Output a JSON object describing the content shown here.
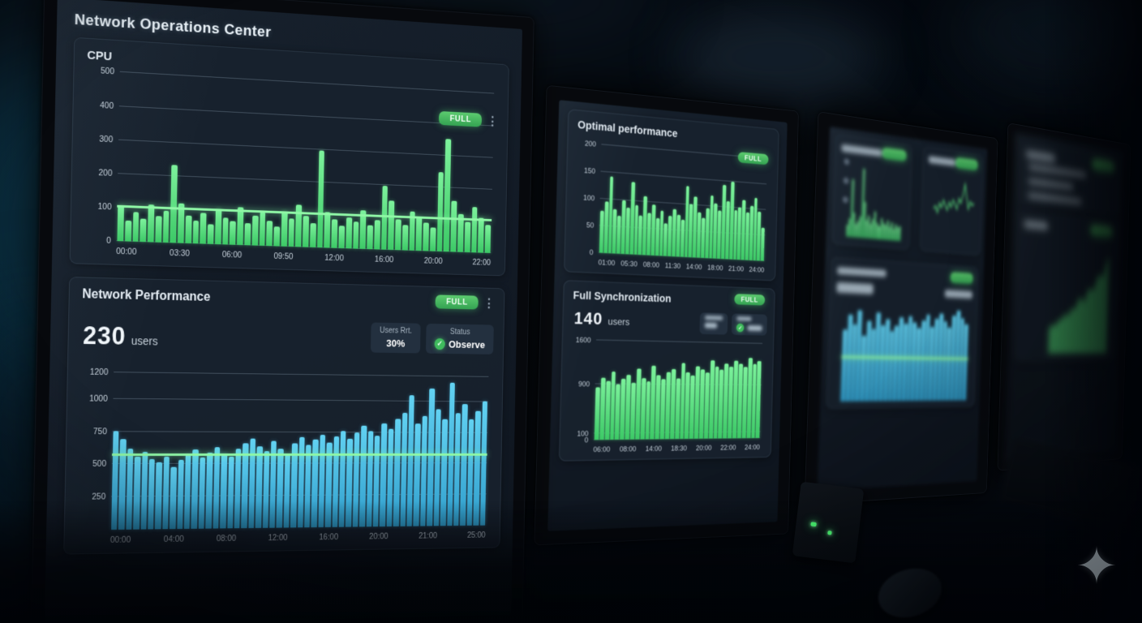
{
  "left_monitor": {
    "title": "Network Operations Center",
    "cpu_card": {
      "badge": "FULL",
      "menu_icon": "kebab-menu"
    },
    "network_card": {
      "badge": "FULL",
      "menu_icon": "kebab-menu",
      "big_stat": {
        "value": "230",
        "unit": "users"
      },
      "users_stat": {
        "label": "Users Rrt.",
        "value": "30%"
      },
      "status_stat": {
        "label": "Status",
        "value": "Observe",
        "icon": "check-circle"
      }
    }
  },
  "middle_monitor": {
    "top_card": {
      "badge": "FULL"
    },
    "bottom_card": {
      "badge": "FULL",
      "big_stat": {
        "value": "140",
        "unit": "users"
      }
    }
  },
  "scene": {
    "watermark_icon": "four-point-star-sparkle",
    "watermark_glyph": "✦"
  },
  "colors": {
    "bar_green": "#52de7b",
    "bar_blue": "#4cc0e8",
    "threshold_green": "#8ff7a6",
    "badge_green": "#43b85c",
    "screen_bg": "#131b25",
    "card_bg": "#18222e"
  },
  "chart_data": [
    {
      "id": "cpu",
      "type": "bar",
      "title": "CPU",
      "color": "green",
      "grid": true,
      "ymax": 520,
      "yticks": [
        500,
        400,
        300,
        200,
        100,
        0
      ],
      "threshold": 100,
      "xticks": [
        "00:00",
        "03:30",
        "06:00",
        "09:50",
        "12:00",
        "16:00",
        "20:00",
        "22:00"
      ],
      "values": [
        105,
        62,
        88,
        70,
        112,
        78,
        95,
        232,
        118,
        84,
        70,
        92,
        60,
        106,
        80,
        72,
        115,
        66,
        90,
        102,
        76,
        60,
        108,
        86,
        128,
        94,
        74,
        298,
        110,
        88,
        68,
        96,
        82,
        118,
        74,
        90,
        198,
        152,
        95,
        78,
        122,
        104,
        88,
        74,
        248,
        352,
        160,
        118,
        96,
        142,
        110,
        88
      ]
    },
    {
      "id": "network_performance",
      "type": "bar",
      "title": "Network Performance",
      "color": "blue",
      "grid": true,
      "ymax": 1280,
      "yticks": [
        1200,
        1000,
        750,
        500,
        250
      ],
      "threshold": 565,
      "xticks": [
        "00:00",
        "04:00",
        "08:00",
        "12:00",
        "16:00",
        "20:00",
        "21:00",
        "25:00"
      ],
      "values": [
        755,
        690,
        620,
        560,
        595,
        540,
        515,
        560,
        480,
        530,
        575,
        615,
        550,
        590,
        630,
        580,
        555,
        620,
        660,
        700,
        640,
        600,
        680,
        620,
        580,
        660,
        710,
        650,
        690,
        730,
        670,
        715,
        760,
        700,
        745,
        800,
        760,
        720,
        820,
        780,
        860,
        905,
        1050,
        820,
        880,
        1105,
        940,
        860,
        1150,
        905,
        980,
        860,
        925,
        1005
      ]
    },
    {
      "id": "optimal_performance",
      "type": "bar",
      "title": "Optimal performance",
      "color": "green",
      "grid": true,
      "ymax": 210,
      "yticks": [
        200,
        150,
        100,
        50,
        0
      ],
      "xticks": [
        "01:00",
        "05:30",
        "08:00",
        "11:30",
        "14:00",
        "18:00",
        "21:00",
        "24:00"
      ],
      "values": [
        78,
        95,
        142,
        82,
        70,
        100,
        86,
        135,
        92,
        74,
        110,
        80,
        96,
        70,
        85,
        62,
        76,
        90,
        80,
        70,
        135,
        102,
        116,
        86,
        76,
        96,
        120,
        106,
        92,
        142,
        112,
        150,
        96,
        102,
        116,
        92,
        106,
        122,
        96,
        64
      ]
    },
    {
      "id": "full_synchronization",
      "type": "bar",
      "title": "Full Synchronization",
      "color": "green",
      "grid": true,
      "ymax": 1700,
      "yticks": [
        1600,
        900,
        100,
        0
      ],
      "xticks": [
        "06:00",
        "08:00",
        "14:00",
        "18:30",
        "20:00",
        "22:00",
        "24:00"
      ],
      "values": [
        850,
        1000,
        950,
        1100,
        900,
        980,
        1050,
        920,
        1150,
        1000,
        950,
        1200,
        1050,
        980,
        1100,
        1150,
        1000,
        1250,
        1100,
        1050,
        1200,
        1150,
        1100,
        1300,
        1200,
        1150,
        1250,
        1200,
        1300,
        1250,
        1200,
        1350,
        1250,
        1300
      ]
    },
    {
      "id": "right_monitor_top",
      "type": "bar",
      "title": "",
      "color": "green",
      "ymax": 260,
      "yticks": [],
      "values": [
        40,
        60,
        190,
        80,
        45,
        55,
        70,
        230,
        120,
        60,
        75,
        50,
        65,
        90,
        55,
        45,
        70,
        55,
        50,
        65,
        45,
        60,
        40,
        55,
        45,
        50
      ]
    },
    {
      "id": "right_monitor_line",
      "type": "line",
      "title": "",
      "ymax": 110,
      "yticks": [],
      "values": [
        55,
        60,
        50,
        65,
        58,
        70,
        62,
        55,
        68,
        60,
        72,
        65,
        58,
        75,
        68,
        80,
        98,
        78,
        60,
        72,
        66,
        70
      ]
    },
    {
      "id": "right_monitor_bottom",
      "type": "bar",
      "title": "",
      "color": "blue",
      "ymax": 1000,
      "yticks": [],
      "threshold": 420,
      "values": [
        700,
        850,
        760,
        900,
        650,
        800,
        720,
        880,
        760,
        820,
        700,
        760,
        840,
        780,
        860,
        800,
        740,
        820,
        880,
        760,
        840,
        900,
        820,
        760,
        880,
        940,
        860,
        800
      ]
    },
    {
      "id": "far_right_area",
      "type": "area",
      "title": "",
      "ymax": 120,
      "yticks": [],
      "values": [
        25,
        30,
        28,
        35,
        35,
        42,
        38,
        48,
        45,
        55,
        60,
        52,
        65,
        70,
        65,
        78,
        85,
        80,
        95,
        105
      ]
    }
  ]
}
